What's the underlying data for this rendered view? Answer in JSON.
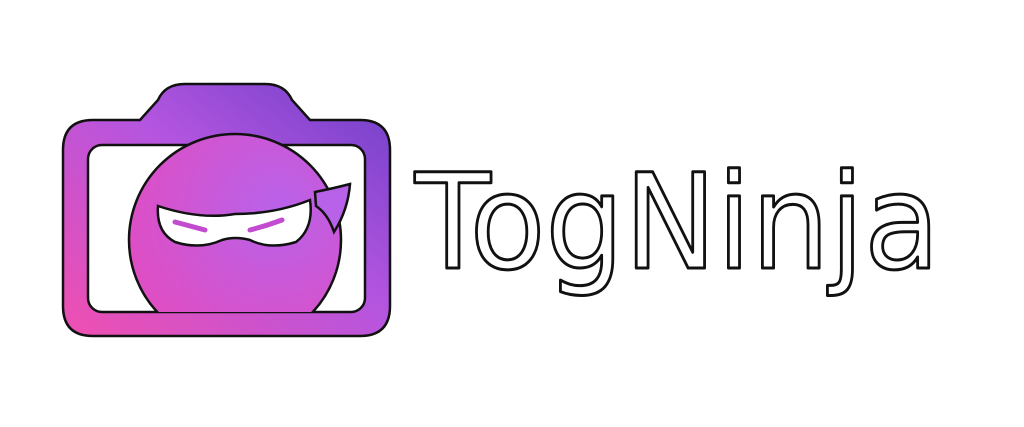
{
  "logo": {
    "wordmark": "TogNinja"
  }
}
